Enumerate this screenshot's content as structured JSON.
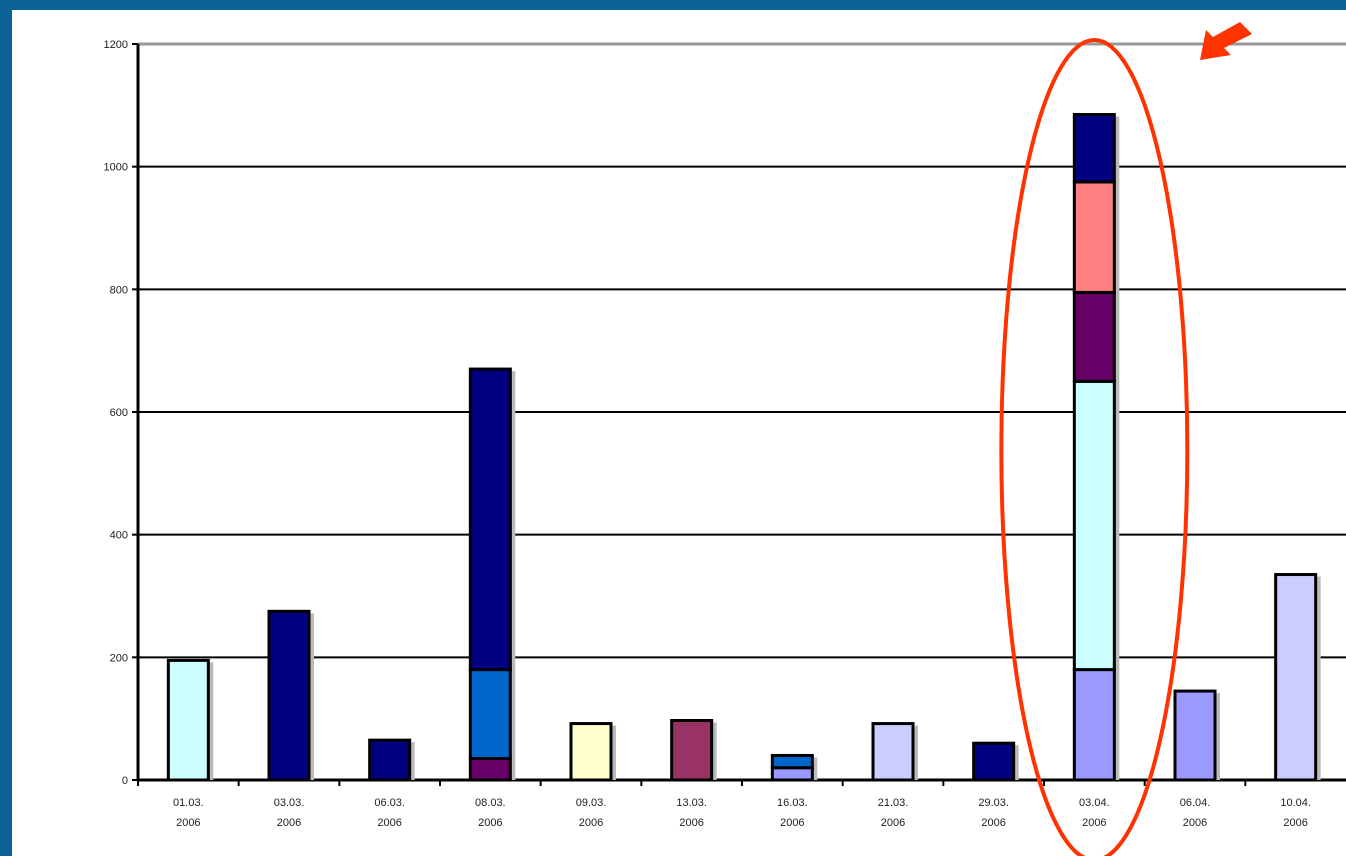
{
  "chart_data": {
    "type": "bar",
    "stacked": true,
    "title": "",
    "xlabel": "",
    "ylabel": "",
    "ylim": [
      0,
      1200
    ],
    "grid": true,
    "legend": "none",
    "y_ticks": [
      0,
      200,
      400,
      600,
      800,
      1000,
      1200
    ],
    "y_tick_labels": [
      "0",
      "200",
      "400",
      "600",
      "800",
      "1000",
      "1200"
    ],
    "categories": [
      "01.03.\n2006",
      "03.03.\n2006",
      "06.03.\n2006",
      "08.03.\n2006",
      "09.03.\n2006",
      "13.03.\n2006",
      "16.03.\n2006",
      "21.03.\n2006",
      "29.03.\n2006",
      "03.04.\n2006",
      "06.04.\n2006",
      "10.04.\n2006"
    ],
    "stacks": [
      [
        {
          "value": 195,
          "color": "#CCFFFF"
        }
      ],
      [
        {
          "value": 275,
          "color": "#000080"
        }
      ],
      [
        {
          "value": 65,
          "color": "#000080"
        }
      ],
      [
        {
          "value": 35,
          "color": "#660066"
        },
        {
          "value": 145,
          "color": "#0066CC"
        },
        {
          "value": 490,
          "color": "#000080"
        }
      ],
      [
        {
          "value": 92,
          "color": "#FFFFCC"
        }
      ],
      [
        {
          "value": 97,
          "color": "#993366"
        }
      ],
      [
        {
          "value": 20,
          "color": "#9999FF"
        },
        {
          "value": 20,
          "color": "#0066CC"
        }
      ],
      [
        {
          "value": 92,
          "color": "#CCCCFF"
        }
      ],
      [
        {
          "value": 60,
          "color": "#000080"
        }
      ],
      [
        {
          "value": 180,
          "color": "#9999FF"
        },
        {
          "value": 470,
          "color": "#CCFFFF"
        },
        {
          "value": 145,
          "color": "#660066"
        },
        {
          "value": 180,
          "color": "#FF8080"
        },
        {
          "value": 110,
          "color": "#000080"
        }
      ],
      [
        {
          "value": 145,
          "color": "#9999FF"
        }
      ],
      [
        {
          "value": 335,
          "color": "#CCCCFF"
        }
      ]
    ]
  },
  "annotations": {
    "highlight_category_index": 9,
    "highlight_color": "#FF3300",
    "arrow_color": "#FF3300"
  },
  "colors": {
    "background": "#0A6296",
    "plot_background": "#FFFFFF",
    "gridline": "#000000",
    "bar_outline": "#000000"
  }
}
